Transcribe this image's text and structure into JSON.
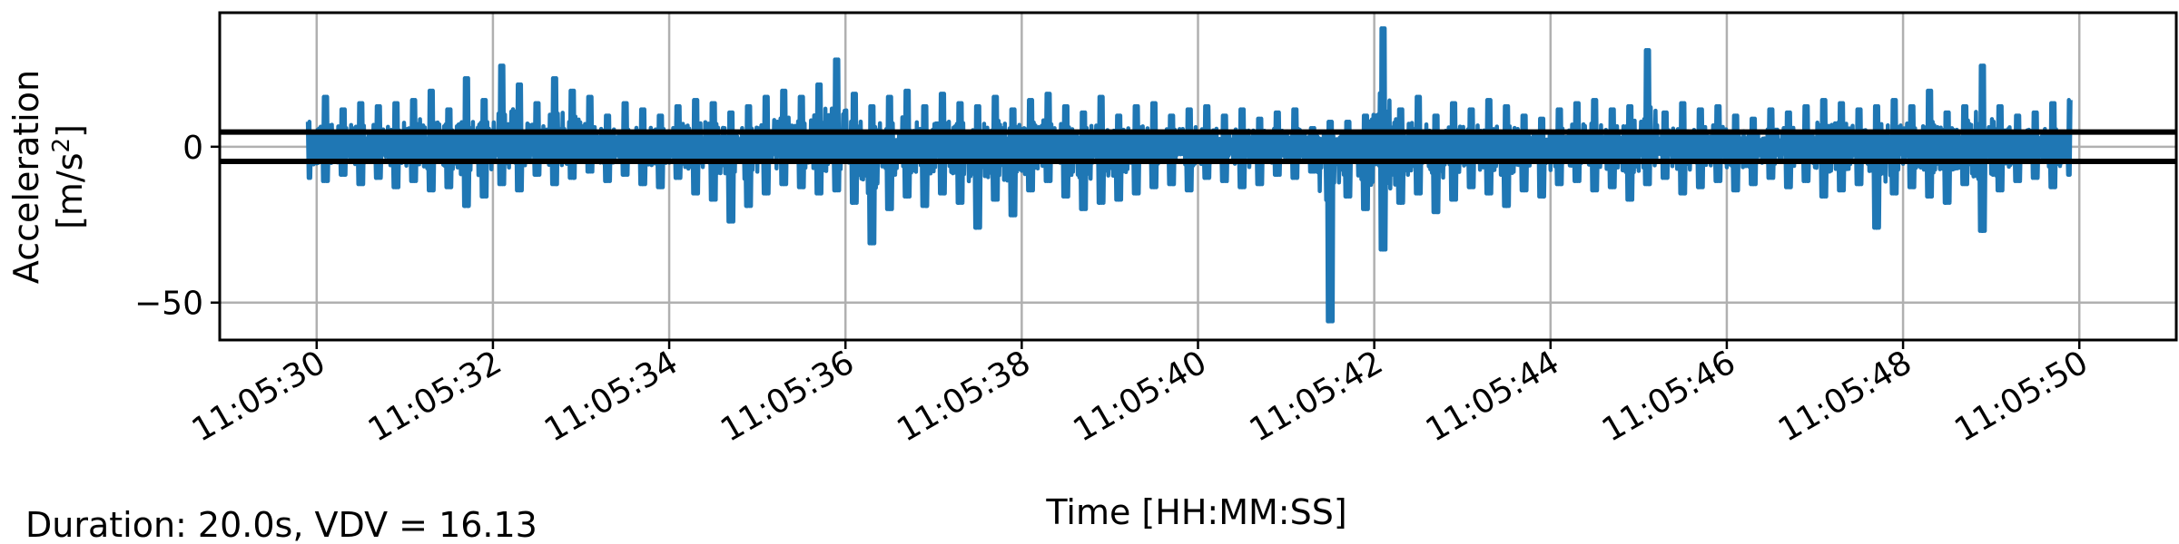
{
  "chart_data": {
    "type": "line",
    "xlabel": "Time [HH:MM:SS]",
    "ylabel_line1": "Acceleration",
    "ylabel_unit_base": "[m/s",
    "ylabel_unit_exp": "2",
    "ylabel_unit_close": "]",
    "x_start": "11:05:29.9",
    "x_end": "11:05:49.9",
    "xlim": [
      -1.1,
      21.1
    ],
    "ylim": [
      -62,
      43
    ],
    "x_ticks": [
      {
        "t": 0,
        "label": "11:05:30"
      },
      {
        "t": 2,
        "label": "11:05:32"
      },
      {
        "t": 4,
        "label": "11:05:34"
      },
      {
        "t": 6,
        "label": "11:05:36"
      },
      {
        "t": 8,
        "label": "11:05:38"
      },
      {
        "t": 10,
        "label": "11:05:40"
      },
      {
        "t": 12,
        "label": "11:05:42"
      },
      {
        "t": 14,
        "label": "11:05:44"
      },
      {
        "t": 16,
        "label": "11:05:46"
      },
      {
        "t": 18,
        "label": "11:05:48"
      },
      {
        "t": 20,
        "label": "11:05:50"
      }
    ],
    "y_ticks": [
      {
        "v": 0,
        "label": "0"
      },
      {
        "v": -50,
        "label": "−50"
      }
    ],
    "threshold_lines": [
      4.7,
      -4.7
    ],
    "grid": true,
    "series_color": "#1f77b4",
    "series": [
      {
        "x": [
          -0.1,
          0.1,
          0.3,
          0.5,
          0.7,
          0.9,
          1.1,
          1.3,
          1.5,
          1.7,
          1.9,
          2.1,
          2.3,
          2.5,
          2.7,
          2.9,
          3.1,
          3.3,
          3.5,
          3.7,
          3.9,
          4.1,
          4.3,
          4.5,
          4.7,
          4.9,
          5.1,
          5.3,
          5.5,
          5.7,
          5.9,
          6.1,
          6.3,
          6.5,
          6.7,
          6.9,
          7.1,
          7.3,
          7.5,
          7.7,
          7.9,
          8.1,
          8.3,
          8.5,
          8.7,
          8.9,
          9.1,
          9.3,
          9.5,
          9.7,
          9.9,
          10.1,
          10.3,
          10.5,
          10.7,
          10.9,
          11.1,
          11.3,
          11.5,
          11.7,
          11.9,
          12.1,
          12.3,
          12.5,
          12.7,
          12.9,
          13.1,
          13.3,
          13.5,
          13.7,
          13.9,
          14.1,
          14.3,
          14.5,
          14.7,
          14.9,
          15.1,
          15.3,
          15.5,
          15.7,
          15.9,
          16.1,
          16.3,
          16.5,
          16.7,
          16.9,
          17.1,
          17.3,
          17.5,
          17.7,
          17.9,
          18.1,
          18.3,
          18.5,
          18.7,
          18.9,
          19.1,
          19.3,
          19.5,
          19.7,
          19.9
        ],
        "max": [
          8,
          16,
          12,
          14,
          13,
          14,
          15,
          18,
          12,
          22,
          15,
          26,
          20,
          14,
          22,
          18,
          16,
          10,
          14,
          12,
          10,
          13,
          15,
          14,
          11,
          13,
          16,
          18,
          16,
          20,
          28,
          17,
          13,
          16,
          18,
          13,
          17,
          14,
          13,
          16,
          12,
          15,
          17,
          13,
          11,
          16,
          10,
          13,
          14,
          10,
          12,
          13,
          10,
          12,
          9,
          11,
          12,
          6,
          8,
          8,
          10,
          38,
          12,
          16,
          10,
          14,
          12,
          15,
          13,
          10,
          9,
          12,
          14,
          15,
          12,
          13,
          31,
          11,
          14,
          12,
          13,
          10,
          9,
          12,
          11,
          13,
          15,
          14,
          12,
          13,
          15,
          13,
          18,
          11,
          13,
          26,
          13,
          10,
          11,
          14,
          15
        ],
        "min": [
          -10,
          -11,
          -9,
          -12,
          -10,
          -13,
          -11,
          -14,
          -13,
          -19,
          -16,
          -12,
          -14,
          -9,
          -12,
          -10,
          -8,
          -11,
          -9,
          -12,
          -13,
          -10,
          -15,
          -17,
          -24,
          -19,
          -15,
          -12,
          -13,
          -15,
          -14,
          -18,
          -31,
          -20,
          -16,
          -19,
          -15,
          -18,
          -26,
          -17,
          -22,
          -14,
          -11,
          -16,
          -20,
          -18,
          -17,
          -15,
          -13,
          -12,
          -14,
          -10,
          -11,
          -13,
          -12,
          -9,
          -10,
          -8,
          -56,
          -16,
          -20,
          -33,
          -18,
          -15,
          -21,
          -17,
          -13,
          -15,
          -19,
          -14,
          -16,
          -12,
          -11,
          -14,
          -13,
          -17,
          -12,
          -10,
          -15,
          -13,
          -11,
          -14,
          -12,
          -10,
          -13,
          -11,
          -16,
          -14,
          -12,
          -26,
          -15,
          -13,
          -16,
          -18,
          -12,
          -27,
          -14,
          -11,
          -10,
          -13,
          -9
        ]
      }
    ]
  },
  "footer": {
    "summary": "Duration: 20.0s, VDV = 16.13"
  }
}
